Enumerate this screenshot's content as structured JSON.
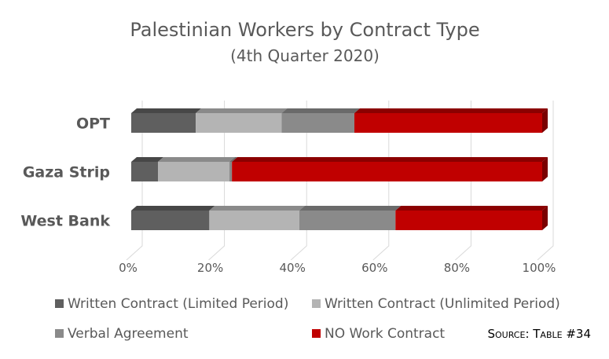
{
  "chart_data": {
    "type": "bar",
    "orientation": "horizontal",
    "stacked": "100%",
    "title": "Palestinian Workers by Contract Type",
    "subtitle": "(4th Quarter 2020)",
    "categories": [
      "OPT",
      "Gaza Strip",
      "West Bank"
    ],
    "series": [
      {
        "name": "Written Contract (Limited Period)",
        "color": "#5f5f5f",
        "top": "#474747",
        "values": [
          15.7,
          6.5,
          19.0
        ]
      },
      {
        "name": "Written Contract (Unlimited Period)",
        "color": "#b4b4b4",
        "top": "#8a8a8a",
        "values": [
          20.9,
          17.4,
          21.9
        ]
      },
      {
        "name": "Verbal Agreement",
        "color": "#8a8a8a",
        "top": "#6a6a6a",
        "values": [
          17.7,
          0.6,
          23.4
        ]
      },
      {
        "name": "NO Work Contract",
        "color": "#c00000",
        "top": "#8b0000",
        "values": [
          45.7,
          75.5,
          35.7
        ]
      }
    ],
    "xticks": [
      "0%",
      "20%",
      "40%",
      "60%",
      "80%",
      "100%"
    ],
    "xlim": [
      0,
      100
    ],
    "grid": true,
    "legend": "bottom",
    "source": "Source: Table #34"
  }
}
